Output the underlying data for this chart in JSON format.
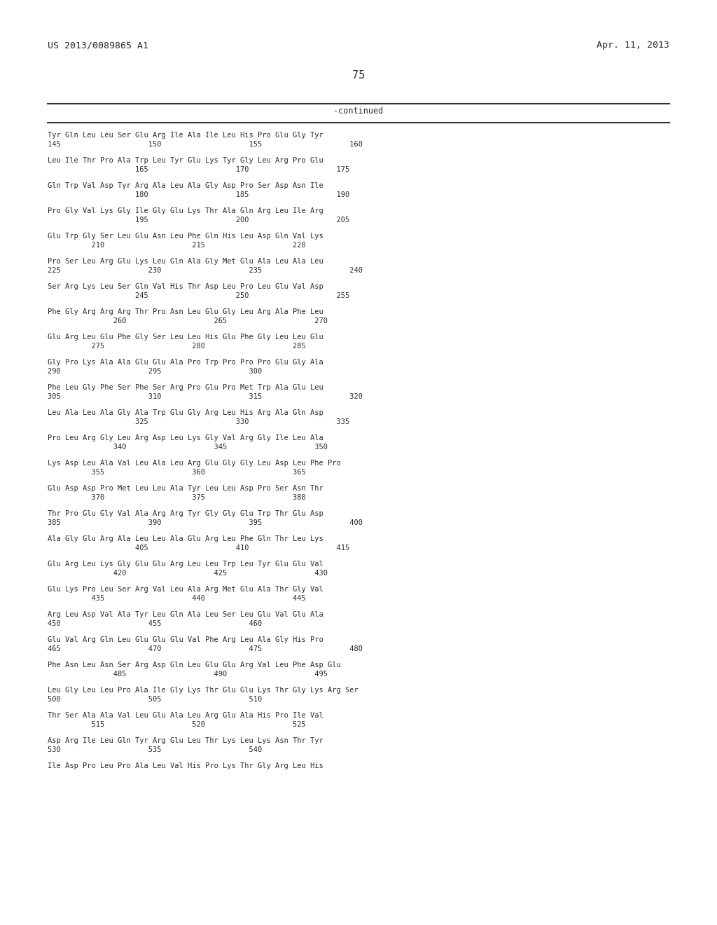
{
  "header_left": "US 2013/0089865 A1",
  "header_right": "Apr. 11, 2013",
  "page_number": "75",
  "continued_label": "-continued",
  "background_color": "#ffffff",
  "text_color": "#2a2a2a",
  "lines_content": [
    [
      "Tyr Gln Leu Leu Ser Glu Arg Ile Ala Ile Leu His Pro Glu Gly Tyr",
      "145                    150                    155                    160"
    ],
    [
      "Leu Ile Thr Pro Ala Trp Leu Tyr Glu Lys Tyr Gly Leu Arg Pro Glu",
      "                    165                    170                    175"
    ],
    [
      "Gln Trp Val Asp Tyr Arg Ala Leu Ala Gly Asp Pro Ser Asp Asn Ile",
      "                    180                    185                    190"
    ],
    [
      "Pro Gly Val Lys Gly Ile Gly Glu Lys Thr Ala Gln Arg Leu Ile Arg",
      "                    195                    200                    205"
    ],
    [
      "Glu Trp Gly Ser Leu Glu Asn Leu Phe Gln His Leu Asp Gln Val Lys",
      "          210                    215                    220"
    ],
    [
      "Pro Ser Leu Arg Glu Lys Leu Gln Ala Gly Met Glu Ala Leu Ala Leu",
      "225                    230                    235                    240"
    ],
    [
      "Ser Arg Lys Leu Ser Gln Val His Thr Asp Leu Pro Leu Glu Val Asp",
      "                    245                    250                    255"
    ],
    [
      "Phe Gly Arg Arg Arg Thr Pro Asn Leu Glu Gly Leu Arg Ala Phe Leu",
      "               260                    265                    270"
    ],
    [
      "Glu Arg Leu Glu Phe Gly Ser Leu Leu His Glu Phe Gly Leu Leu Glu",
      "          275                    280                    285"
    ],
    [
      "Gly Pro Lys Ala Ala Glu Glu Ala Pro Trp Pro Pro Pro Glu Gly Ala",
      "290                    295                    300"
    ],
    [
      "Phe Leu Gly Phe Ser Phe Ser Arg Pro Glu Pro Met Trp Ala Glu Leu",
      "305                    310                    315                    320"
    ],
    [
      "Leu Ala Leu Ala Gly Ala Trp Glu Gly Arg Leu His Arg Ala Gln Asp",
      "                    325                    330                    335"
    ],
    [
      "Pro Leu Arg Gly Leu Arg Asp Leu Lys Gly Val Arg Gly Ile Leu Ala",
      "               340                    345                    350"
    ],
    [
      "Lys Asp Leu Ala Val Leu Ala Leu Arg Glu Gly Gly Leu Asp Leu Phe Pro",
      "          355                    360                    365"
    ],
    [
      "Glu Asp Asp Pro Met Leu Leu Ala Tyr Leu Leu Asp Pro Ser Asn Thr",
      "          370                    375                    380"
    ],
    [
      "Thr Pro Glu Gly Val Ala Arg Arg Tyr Gly Gly Glu Trp Thr Glu Asp",
      "385                    390                    395                    400"
    ],
    [
      "Ala Gly Glu Arg Ala Leu Leu Ala Glu Arg Leu Phe Gln Thr Leu Lys",
      "                    405                    410                    415"
    ],
    [
      "Glu Arg Leu Lys Gly Glu Glu Arg Leu Leu Trp Leu Tyr Glu Glu Val",
      "               420                    425                    430"
    ],
    [
      "Glu Lys Pro Leu Ser Arg Val Leu Ala Arg Met Glu Ala Thr Gly Val",
      "          435                    440                    445"
    ],
    [
      "Arg Leu Asp Val Ala Tyr Leu Gln Ala Leu Ser Leu Glu Val Glu Ala",
      "450                    455                    460"
    ],
    [
      "Glu Val Arg Gln Leu Glu Glu Glu Val Phe Arg Leu Ala Gly His Pro",
      "465                    470                    475                    480"
    ],
    [
      "Phe Asn Leu Asn Ser Arg Asp Gln Leu Glu Glu Arg Val Leu Phe Asp Glu",
      "               485                    490                    495"
    ],
    [
      "Leu Gly Leu Leu Pro Ala Ile Gly Lys Thr Glu Glu Lys Thr Gly Lys Arg Ser",
      "500                    505                    510"
    ],
    [
      "Thr Ser Ala Ala Val Leu Glu Ala Leu Arg Glu Ala His Pro Ile Val",
      "          515                    520                    525"
    ],
    [
      "Asp Arg Ile Leu Gln Tyr Arg Glu Leu Thr Lys Leu Lys Asn Thr Tyr",
      "530                    535                    540"
    ],
    [
      "Ile Asp Pro Leu Pro Ala Leu Val His Pro Lys Thr Gly Arg Leu His",
      ""
    ]
  ]
}
